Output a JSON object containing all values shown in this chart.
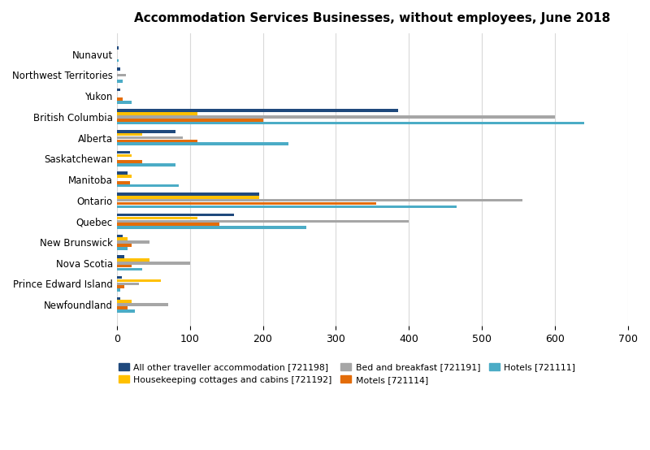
{
  "title": "Accommodation Services Businesses, without employees, June 2018",
  "provinces": [
    "Newfoundland",
    "Prince Edward Island",
    "Nova Scotia",
    "New Brunswick",
    "Quebec",
    "Ontario",
    "Manitoba",
    "Saskatchewan",
    "Alberta",
    "British Columbia",
    "Yukon",
    "Northwest Territories",
    "Nunavut"
  ],
  "series_order": [
    "All other traveller accommodation [721198]",
    "Housekeeping cottages and cabins [721192]",
    "Bed and breakfast [721191]",
    "Motels [721114]",
    "Hotels [721111]"
  ],
  "series": {
    "All other traveller accommodation [721198]": {
      "color": "#1f497d",
      "values": [
        5,
        7,
        10,
        8,
        160,
        195,
        15,
        18,
        80,
        385,
        5,
        5,
        3
      ]
    },
    "Housekeeping cottages and cabins [721192]": {
      "color": "#ffc000",
      "values": [
        20,
        60,
        45,
        15,
        110,
        195,
        20,
        20,
        35,
        110,
        0,
        0,
        0
      ]
    },
    "Bed and breakfast [721191]": {
      "color": "#a6a6a6",
      "values": [
        70,
        30,
        100,
        45,
        400,
        555,
        0,
        0,
        90,
        600,
        0,
        12,
        0
      ]
    },
    "Motels [721114]": {
      "color": "#e36c09",
      "values": [
        15,
        10,
        20,
        20,
        140,
        355,
        18,
        35,
        110,
        200,
        8,
        0,
        0
      ]
    },
    "Hotels [721111]": {
      "color": "#4bacc6",
      "values": [
        25,
        5,
        35,
        15,
        260,
        465,
        85,
        80,
        235,
        640,
        20,
        8,
        3
      ]
    }
  },
  "xlim": [
    0,
    700
  ],
  "xticks": [
    0,
    100,
    200,
    300,
    400,
    500,
    600,
    700
  ],
  "legend_order": [
    "All other traveller accommodation [721198]",
    "Housekeeping cottages and cabins [721192]",
    "Bed and breakfast [721191]",
    "Motels [721114]",
    "Hotels [721111]"
  ],
  "background_color": "#ffffff",
  "grid_color": "#d9d9d9"
}
